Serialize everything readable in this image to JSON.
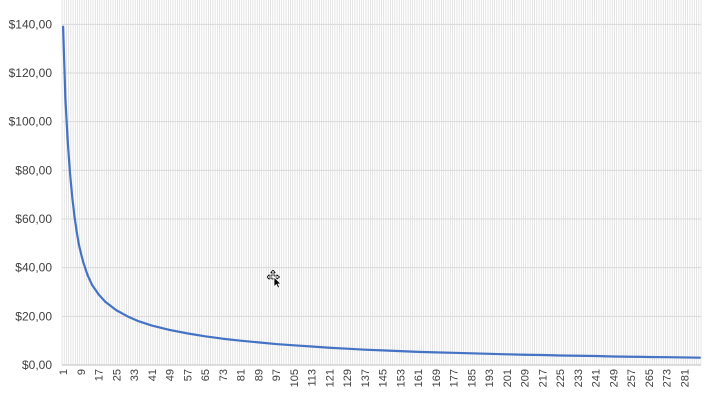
{
  "chart_data": {
    "type": "line",
    "title": "",
    "xlabel": "",
    "ylabel": "",
    "x_range": [
      1,
      288
    ],
    "x_tick_start": 1,
    "x_tick_step": 8,
    "x_tick_labels": [
      "1",
      "9",
      "17",
      "25",
      "33",
      "41",
      "49",
      "57",
      "65",
      "73",
      "81",
      "89",
      "97",
      "105",
      "113",
      "121",
      "129",
      "137",
      "145",
      "153",
      "161",
      "169",
      "177",
      "185",
      "193",
      "201",
      "209",
      "217",
      "225",
      "233",
      "241",
      "249",
      "257",
      "265",
      "273",
      "281"
    ],
    "ylim": [
      0,
      150
    ],
    "y_tick_values": [
      0,
      20,
      40,
      60,
      80,
      100,
      120,
      140
    ],
    "y_tick_labels": [
      "$0,00",
      "$20,00",
      "$40,00",
      "$60,00",
      "$80,00",
      "$100,00",
      "$120,00",
      "$140,00"
    ],
    "grid": {
      "horizontal": true,
      "vertical": true
    },
    "legend": "none",
    "series": [
      {
        "color": "#4472c4",
        "points": [
          [
            1,
            139.0
          ],
          [
            2,
            110.0
          ],
          [
            3,
            93.0
          ],
          [
            4,
            80.0
          ],
          [
            5,
            70.0
          ],
          [
            6,
            62.0
          ],
          [
            7,
            55.5
          ],
          [
            8,
            50.0
          ],
          [
            9,
            46.0
          ],
          [
            10,
            42.5
          ],
          [
            12,
            37.0
          ],
          [
            14,
            33.0
          ],
          [
            17,
            29.0
          ],
          [
            20,
            26.0
          ],
          [
            25,
            22.5
          ],
          [
            30,
            20.0
          ],
          [
            35,
            18.0
          ],
          [
            41,
            16.2
          ],
          [
            49,
            14.4
          ],
          [
            57,
            13.0
          ],
          [
            65,
            11.8
          ],
          [
            73,
            10.8
          ],
          [
            81,
            10.0
          ],
          [
            89,
            9.3
          ],
          [
            97,
            8.6
          ],
          [
            105,
            8.1
          ],
          [
            113,
            7.6
          ],
          [
            121,
            7.1
          ],
          [
            129,
            6.7
          ],
          [
            137,
            6.3
          ],
          [
            145,
            6.0
          ],
          [
            153,
            5.7
          ],
          [
            161,
            5.4
          ],
          [
            169,
            5.2
          ],
          [
            177,
            5.0
          ],
          [
            185,
            4.8
          ],
          [
            193,
            4.6
          ],
          [
            201,
            4.4
          ],
          [
            209,
            4.2
          ],
          [
            217,
            4.1
          ],
          [
            225,
            3.9
          ],
          [
            233,
            3.8
          ],
          [
            241,
            3.7
          ],
          [
            249,
            3.5
          ],
          [
            257,
            3.4
          ],
          [
            265,
            3.3
          ],
          [
            273,
            3.2
          ],
          [
            281,
            3.1
          ],
          [
            288,
            3.0
          ]
        ]
      }
    ]
  }
}
